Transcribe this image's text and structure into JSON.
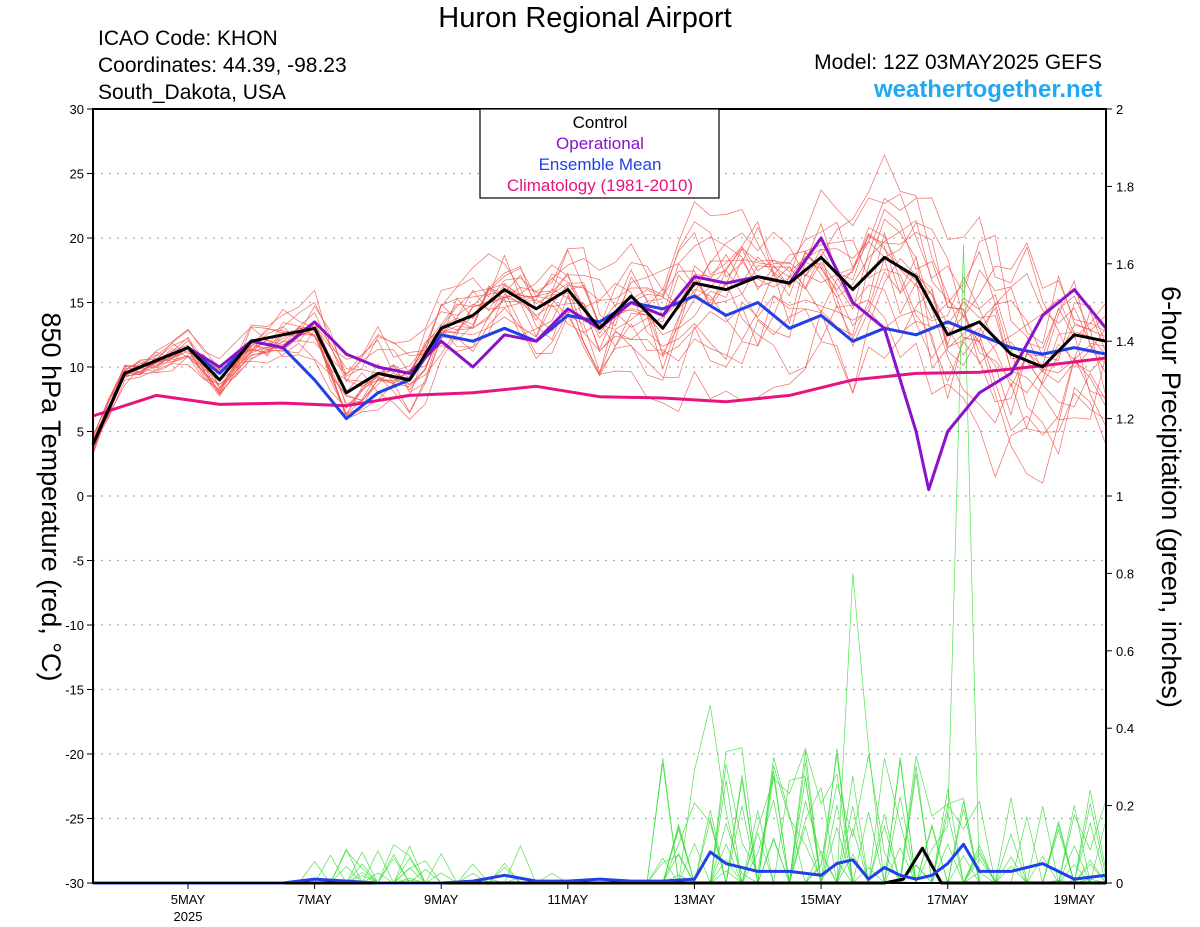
{
  "header": {
    "title": "Huron Regional Airport",
    "icao": "ICAO Code: KHON",
    "coordinates": "Coordinates: 44.39, -98.23",
    "region": "South_Dakota, USA",
    "model": "Model: 12Z 03MAY2025 GEFS",
    "website": "weathertogether.net"
  },
  "chart_data": {
    "type": "line",
    "ylabel_left": "850 hPa Temperature (red, °C)",
    "ylabel_right": "6-hour Precipitation (green, inches)",
    "y_left_range": [
      -30,
      30
    ],
    "y_left_ticks": [
      "30",
      "25",
      "20",
      "15",
      "10",
      "5",
      "0",
      "-5",
      "-10",
      "-15",
      "-20",
      "-25",
      "-30"
    ],
    "y_right_range": [
      0,
      2
    ],
    "y_right_ticks": [
      "2",
      "1.8",
      "1.6",
      "1.4",
      "1.2",
      "1",
      "0.8",
      "0.6",
      "0.4",
      "0.2",
      "0"
    ],
    "x_ticks": [
      {
        "day": 5,
        "label": "5MAY",
        "sub": "2025"
      },
      {
        "day": 7,
        "label": "7MAY",
        "sub": ""
      },
      {
        "day": 9,
        "label": "9MAY",
        "sub": ""
      },
      {
        "day": 11,
        "label": "11MAY",
        "sub": ""
      },
      {
        "day": 13,
        "label": "13MAY",
        "sub": ""
      },
      {
        "day": 15,
        "label": "15MAY",
        "sub": ""
      },
      {
        "day": 17,
        "label": "17MAY",
        "sub": ""
      },
      {
        "day": 19,
        "label": "19MAY",
        "sub": ""
      }
    ],
    "x_range_days": [
      3.5,
      19.5
    ],
    "grid": "horizontal dotted",
    "legend_position": "top-center",
    "legend": [
      {
        "label": "Control",
        "color": "#000000"
      },
      {
        "label": "Operational",
        "color": "#8a12c8"
      },
      {
        "label": "Ensemble Mean",
        "color": "#2040e8"
      },
      {
        "label": "Climatology (1981-2010)",
        "color": "#e8137e"
      }
    ],
    "colors": {
      "members_temp": "#f0524a",
      "members_precip": "#33dd33"
    },
    "series": [
      {
        "name": "Control",
        "axis": "left",
        "color": "#000000",
        "x": [
          3.5,
          4.0,
          4.5,
          5.0,
          5.5,
          6.0,
          6.5,
          7.0,
          7.5,
          8.0,
          8.5,
          9.0,
          9.5,
          10.0,
          10.5,
          11.0,
          11.5,
          12.0,
          12.5,
          13.0,
          13.5,
          14.0,
          14.5,
          15.0,
          15.5,
          16.0,
          16.5,
          17.0,
          17.5,
          18.0,
          18.5,
          19.0,
          19.5
        ],
        "y": [
          4,
          9.5,
          10.5,
          11.5,
          9,
          12,
          12.5,
          13,
          8,
          9.5,
          9,
          13,
          14,
          16,
          14.5,
          16,
          13,
          15.5,
          13,
          16.5,
          16,
          17,
          16.5,
          18.5,
          16,
          18.5,
          17,
          12.5,
          13.5,
          11,
          10,
          12.5,
          12
        ]
      },
      {
        "name": "Operational",
        "axis": "left",
        "color": "#8a12c8",
        "x": [
          3.5,
          4.0,
          4.5,
          5.0,
          5.5,
          6.0,
          6.5,
          7.0,
          7.5,
          8.0,
          8.5,
          9.0,
          9.5,
          10.0,
          10.5,
          11.0,
          11.5,
          12.0,
          12.5,
          13.0,
          13.5,
          14.0,
          14.5,
          15.0,
          15.5,
          16.0,
          16.5,
          16.7,
          17.0,
          17.5,
          18.0,
          18.5,
          19.0,
          19.5
        ],
        "y": [
          4,
          9.5,
          10.5,
          11.5,
          10,
          12,
          11.5,
          13.5,
          11,
          10,
          9.5,
          12,
          10,
          12.5,
          12,
          14.5,
          13,
          15,
          14,
          17,
          16.5,
          17,
          16.5,
          20,
          15,
          13,
          5,
          0.5,
          5,
          8,
          9.5,
          14,
          16,
          13
        ]
      },
      {
        "name": "Ensemble Mean",
        "axis": "left",
        "color": "#2040e8",
        "x": [
          3.5,
          4.0,
          4.5,
          5.0,
          5.5,
          6.0,
          6.5,
          7.0,
          7.5,
          8.0,
          8.5,
          9.0,
          9.5,
          10.0,
          10.5,
          11.0,
          11.5,
          12.0,
          12.5,
          13.0,
          13.5,
          14.0,
          14.5,
          15.0,
          15.5,
          16.0,
          16.5,
          17.0,
          17.5,
          18.0,
          18.5,
          19.0,
          19.5
        ],
        "y": [
          4,
          9.5,
          10.5,
          11.5,
          9.5,
          12,
          11.5,
          9,
          6,
          8,
          9,
          12.5,
          12,
          13,
          12,
          14,
          13.5,
          15,
          14.5,
          15.5,
          14,
          15,
          13,
          14,
          12,
          13,
          12.5,
          13.5,
          12.5,
          11.5,
          11,
          11.5,
          11
        ]
      },
      {
        "name": "Climatology (1981-2010)",
        "axis": "left",
        "color": "#e8137e",
        "x": [
          3.5,
          4.5,
          5.5,
          6.5,
          7.5,
          8.5,
          9.5,
          10.5,
          11.5,
          12.5,
          13.5,
          14.5,
          15.5,
          16.5,
          17.5,
          18.5,
          19.5
        ],
        "y": [
          6.2,
          7.8,
          7.1,
          7.2,
          7.0,
          7.8,
          8.0,
          8.5,
          7.7,
          7.6,
          7.3,
          7.8,
          9.0,
          9.5,
          9.6,
          10.1,
          10.7
        ]
      },
      {
        "name": "Control",
        "axis": "right",
        "color": "#000000",
        "x": [
          3.5,
          15.5,
          16.0,
          16.3,
          16.6,
          16.9,
          17.5,
          18.5,
          19.5
        ],
        "y": [
          0,
          0,
          0,
          0.01,
          0.09,
          0,
          0,
          0,
          0
        ]
      },
      {
        "name": "Ensemble Mean",
        "axis": "right",
        "color": "#2040e8",
        "x": [
          3.5,
          6.5,
          7.0,
          7.5,
          8.0,
          8.5,
          9.0,
          9.5,
          10.0,
          10.5,
          11.0,
          11.5,
          12.0,
          12.5,
          13.0,
          13.25,
          13.5,
          14.0,
          14.5,
          15.0,
          15.25,
          15.5,
          15.75,
          16.0,
          16.25,
          16.5,
          16.75,
          17.0,
          17.25,
          17.5,
          18.0,
          18.5,
          19.0,
          19.5
        ],
        "y": [
          0,
          0,
          0.01,
          0.005,
          0,
          0,
          0,
          0.005,
          0.02,
          0.005,
          0.005,
          0.01,
          0.005,
          0.005,
          0.01,
          0.08,
          0.05,
          0.03,
          0.03,
          0.02,
          0.05,
          0.06,
          0.01,
          0.04,
          0.02,
          0.01,
          0.02,
          0.05,
          0.1,
          0.03,
          0.03,
          0.05,
          0.01,
          0.02
        ]
      }
    ]
  }
}
